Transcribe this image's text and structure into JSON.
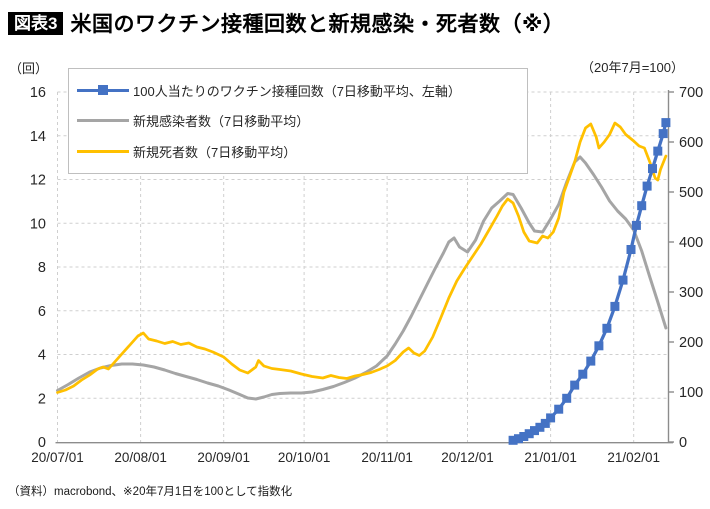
{
  "header": {
    "tag": "図表3",
    "title": "米国のワクチン接種回数と新規感染・死者数（※）"
  },
  "footnote": "（資料）macrobond、※20年7月1日を100として指数化",
  "colors": {
    "vaccine_blue": "#4472C4",
    "cases_gray": "#A5A5A5",
    "deaths_yellow": "#FFC000",
    "grid": "#CFCFCF",
    "axis": "#8C8C8C"
  },
  "chart_data": {
    "type": "line",
    "title": "米国のワクチン接種回数と新規感染・死者数（※）",
    "left_axis": {
      "unit": "（回）",
      "range": [
        0,
        16
      ],
      "ticks": [
        0,
        2,
        4,
        6,
        8,
        10,
        12,
        14,
        16
      ]
    },
    "right_axis": {
      "unit": "（20年7月=100）",
      "range": [
        0,
        700
      ],
      "ticks": [
        0,
        100,
        200,
        300,
        400,
        500,
        600,
        700
      ]
    },
    "x_axis": {
      "ticks": [
        "20/07/01",
        "20/08/01",
        "20/09/01",
        "20/10/01",
        "20/11/01",
        "20/12/01",
        "21/01/01",
        "21/02/01"
      ],
      "end_date": "21/02/13"
    },
    "grid": "dashed, horizontal every 2 (left axis), vertical monthly",
    "legend_position": "top-left inside plot",
    "series": [
      {
        "id": "vaccine",
        "name": "100人当たりのワクチン接種回数（7日移動平均、左軸）",
        "axis": "left",
        "color": "#4472C4",
        "marker": "square",
        "width": 3.25,
        "z": 3,
        "points": [
          [
            "20/12/18",
            0.08
          ],
          [
            "20/12/20",
            0.15
          ],
          [
            "20/12/22",
            0.25
          ],
          [
            "20/12/24",
            0.38
          ],
          [
            "20/12/26",
            0.52
          ],
          [
            "20/12/28",
            0.67
          ],
          [
            "20/12/30",
            0.85
          ],
          [
            "21/01/01",
            1.1
          ],
          [
            "21/01/04",
            1.5
          ],
          [
            "21/01/07",
            2.0
          ],
          [
            "21/01/10",
            2.6
          ],
          [
            "21/01/13",
            3.1
          ],
          [
            "21/01/16",
            3.7
          ],
          [
            "21/01/19",
            4.4
          ],
          [
            "21/01/22",
            5.2
          ],
          [
            "21/01/25",
            6.2
          ],
          [
            "21/01/28",
            7.4
          ],
          [
            "21/01/31",
            8.8
          ],
          [
            "21/02/02",
            9.9
          ],
          [
            "21/02/04",
            10.8
          ],
          [
            "21/02/06",
            11.7
          ],
          [
            "21/02/08",
            12.5
          ],
          [
            "21/02/10",
            13.3
          ],
          [
            "21/02/12",
            14.1
          ],
          [
            "21/02/13",
            14.6
          ]
        ]
      },
      {
        "id": "cases",
        "name": "新規感染者数（7日移動平均）",
        "axis": "right",
        "color": "#A5A5A5",
        "marker": "none",
        "width": 3,
        "z": 1,
        "points": [
          [
            "20/07/01",
            103
          ],
          [
            "20/07/05",
            115
          ],
          [
            "20/07/09",
            128
          ],
          [
            "20/07/13",
            140
          ],
          [
            "20/07/17",
            148
          ],
          [
            "20/07/21",
            153
          ],
          [
            "20/07/25",
            156
          ],
          [
            "20/07/29",
            156
          ],
          [
            "20/08/02",
            154
          ],
          [
            "20/08/06",
            150
          ],
          [
            "20/08/10",
            144
          ],
          [
            "20/08/14",
            137
          ],
          [
            "20/08/18",
            131
          ],
          [
            "20/08/22",
            125
          ],
          [
            "20/08/26",
            118
          ],
          [
            "20/08/30",
            112
          ],
          [
            "20/09/03",
            104
          ],
          [
            "20/09/07",
            95
          ],
          [
            "20/09/10",
            88
          ],
          [
            "20/09/13",
            86
          ],
          [
            "20/09/16",
            90
          ],
          [
            "20/09/19",
            95
          ],
          [
            "20/09/22",
            97
          ],
          [
            "20/09/26",
            98
          ],
          [
            "20/09/30",
            98
          ],
          [
            "20/10/04",
            100
          ],
          [
            "20/10/08",
            105
          ],
          [
            "20/10/12",
            111
          ],
          [
            "20/10/16",
            119
          ],
          [
            "20/10/20",
            128
          ],
          [
            "20/10/24",
            139
          ],
          [
            "20/10/28",
            152
          ],
          [
            "20/11/01",
            172
          ],
          [
            "20/11/04",
            196
          ],
          [
            "20/11/07",
            222
          ],
          [
            "20/11/10",
            252
          ],
          [
            "20/11/13",
            284
          ],
          [
            "20/11/16",
            316
          ],
          [
            "20/11/19",
            348
          ],
          [
            "20/11/22",
            378
          ],
          [
            "20/11/24",
            400
          ],
          [
            "20/11/26",
            408
          ],
          [
            "20/11/28",
            390
          ],
          [
            "20/12/01",
            380
          ],
          [
            "20/12/04",
            404
          ],
          [
            "20/12/07",
            442
          ],
          [
            "20/12/10",
            468
          ],
          [
            "20/12/13",
            482
          ],
          [
            "20/12/16",
            497
          ],
          [
            "20/12/18",
            495
          ],
          [
            "20/12/21",
            468
          ],
          [
            "20/12/24",
            438
          ],
          [
            "20/12/26",
            422
          ],
          [
            "20/12/29",
            420
          ],
          [
            "21/01/01",
            446
          ],
          [
            "21/01/04",
            475
          ],
          [
            "21/01/07",
            520
          ],
          [
            "21/01/10",
            560
          ],
          [
            "21/01/12",
            570
          ],
          [
            "21/01/14",
            558
          ],
          [
            "21/01/17",
            535
          ],
          [
            "21/01/20",
            510
          ],
          [
            "21/01/23",
            482
          ],
          [
            "21/01/26",
            462
          ],
          [
            "21/01/29",
            446
          ],
          [
            "21/02/01",
            424
          ],
          [
            "21/02/04",
            382
          ],
          [
            "21/02/07",
            330
          ],
          [
            "21/02/10",
            280
          ],
          [
            "21/02/13",
            228
          ]
        ]
      },
      {
        "id": "deaths",
        "name": "新規死者数（7日移動平均）",
        "axis": "right",
        "color": "#FFC000",
        "marker": "none",
        "width": 2.75,
        "z": 2,
        "points": [
          [
            "20/07/01",
            99
          ],
          [
            "20/07/04",
            104
          ],
          [
            "20/07/07",
            112
          ],
          [
            "20/07/10",
            124
          ],
          [
            "20/07/13",
            134
          ],
          [
            "20/07/16",
            146
          ],
          [
            "20/07/18",
            150
          ],
          [
            "20/07/20",
            146
          ],
          [
            "20/07/22",
            158
          ],
          [
            "20/07/25",
            176
          ],
          [
            "20/07/28",
            194
          ],
          [
            "20/07/31",
            212
          ],
          [
            "20/08/02",
            218
          ],
          [
            "20/08/04",
            206
          ],
          [
            "20/08/07",
            202
          ],
          [
            "20/08/10",
            197
          ],
          [
            "20/08/13",
            201
          ],
          [
            "20/08/16",
            195
          ],
          [
            "20/08/19",
            198
          ],
          [
            "20/08/22",
            190
          ],
          [
            "20/08/25",
            186
          ],
          [
            "20/08/28",
            180
          ],
          [
            "20/09/01",
            170
          ],
          [
            "20/09/04",
            156
          ],
          [
            "20/09/07",
            144
          ],
          [
            "20/09/10",
            138
          ],
          [
            "20/09/13",
            150
          ],
          [
            "20/09/14",
            163
          ],
          [
            "20/09/16",
            152
          ],
          [
            "20/09/19",
            147
          ],
          [
            "20/09/22",
            145
          ],
          [
            "20/09/26",
            142
          ],
          [
            "20/09/30",
            136
          ],
          [
            "20/10/04",
            131
          ],
          [
            "20/10/08",
            128
          ],
          [
            "20/10/11",
            133
          ],
          [
            "20/10/14",
            129
          ],
          [
            "20/10/17",
            127
          ],
          [
            "20/10/20",
            132
          ],
          [
            "20/10/23",
            135
          ],
          [
            "20/10/26",
            139
          ],
          [
            "20/10/29",
            145
          ],
          [
            "20/11/01",
            152
          ],
          [
            "20/11/04",
            163
          ],
          [
            "20/11/07",
            180
          ],
          [
            "20/11/09",
            188
          ],
          [
            "20/11/11",
            178
          ],
          [
            "20/11/13",
            173
          ],
          [
            "20/11/15",
            182
          ],
          [
            "20/11/18",
            210
          ],
          [
            "20/11/21",
            248
          ],
          [
            "20/11/24",
            288
          ],
          [
            "20/11/27",
            322
          ],
          [
            "20/11/30",
            348
          ],
          [
            "20/12/03",
            372
          ],
          [
            "20/12/06",
            396
          ],
          [
            "20/12/09",
            424
          ],
          [
            "20/12/12",
            452
          ],
          [
            "20/12/14",
            472
          ],
          [
            "20/12/16",
            486
          ],
          [
            "20/12/18",
            478
          ],
          [
            "20/12/20",
            452
          ],
          [
            "20/12/22",
            420
          ],
          [
            "20/12/24",
            402
          ],
          [
            "20/12/27",
            398
          ],
          [
            "20/12/29",
            412
          ],
          [
            "20/12/31",
            408
          ],
          [
            "21/01/02",
            420
          ],
          [
            "21/01/04",
            448
          ],
          [
            "21/01/06",
            500
          ],
          [
            "21/01/08",
            530
          ],
          [
            "21/01/10",
            560
          ],
          [
            "21/01/12",
            600
          ],
          [
            "21/01/14",
            628
          ],
          [
            "21/01/16",
            636
          ],
          [
            "21/01/18",
            610
          ],
          [
            "21/01/19",
            588
          ],
          [
            "21/01/21",
            600
          ],
          [
            "21/01/23",
            615
          ],
          [
            "21/01/25",
            638
          ],
          [
            "21/01/27",
            630
          ],
          [
            "21/01/29",
            615
          ],
          [
            "21/02/01",
            602
          ],
          [
            "21/02/03",
            592
          ],
          [
            "21/02/05",
            588
          ],
          [
            "21/02/07",
            560
          ],
          [
            "21/02/09",
            528
          ],
          [
            "21/02/10",
            524
          ],
          [
            "21/02/11",
            545
          ],
          [
            "21/02/13",
            572
          ]
        ]
      }
    ]
  }
}
